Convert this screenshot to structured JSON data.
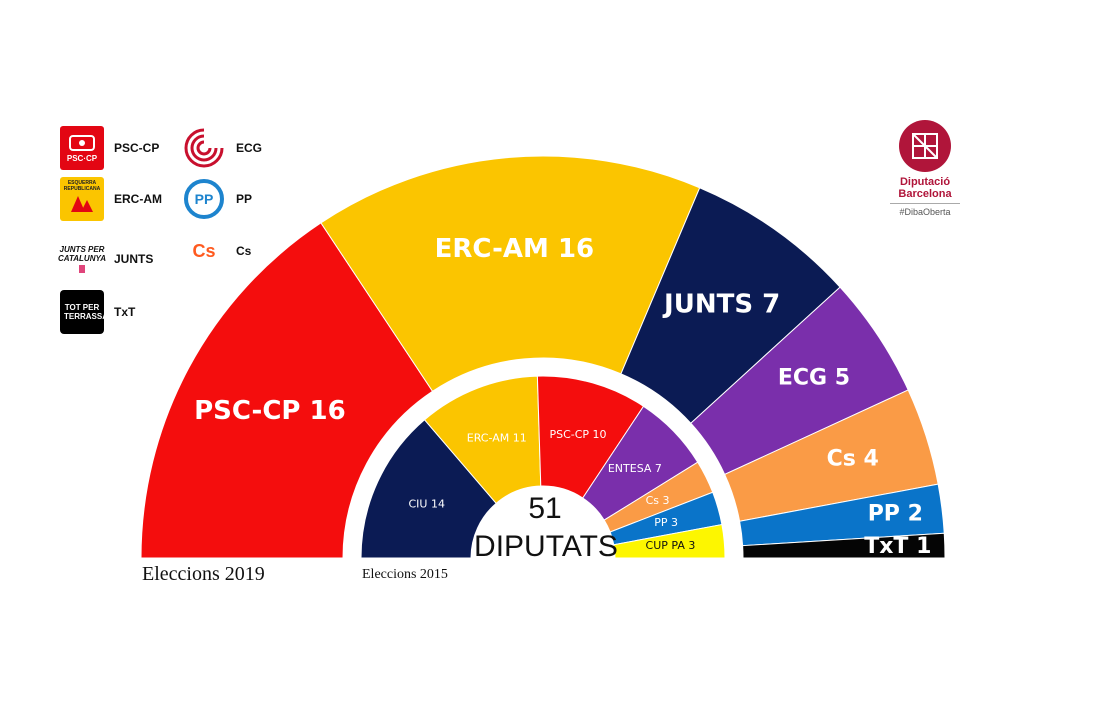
{
  "chart_data": [
    {
      "type": "pie",
      "subtype": "parliament-hemicycle",
      "caption": "Eleccions 2019",
      "series": [
        {
          "name": "PSC-CP",
          "label": "PSC-CP 16",
          "value": 16,
          "color": "#f40d0d"
        },
        {
          "name": "ERC-AM",
          "label": "ERC-AM 16",
          "value": 16,
          "color": "#fbc500"
        },
        {
          "name": "JUNTS",
          "label": "JUNTS 7",
          "value": 7,
          "color": "#0b1b54"
        },
        {
          "name": "ECG",
          "label": "ECG 5",
          "value": 5,
          "color": "#7a2fab"
        },
        {
          "name": "Cs",
          "label": "Cs 4",
          "value": 4,
          "color": "#fa9b46"
        },
        {
          "name": "PP",
          "label": "PP 2",
          "value": 2,
          "color": "#0a74c9"
        },
        {
          "name": "TxT",
          "label": "TxT 1",
          "value": 1,
          "color": "#050505"
        }
      ]
    },
    {
      "type": "pie",
      "subtype": "parliament-hemicycle",
      "caption": "Eleccions 2015",
      "series": [
        {
          "name": "CIU",
          "label": "CIU 14",
          "value": 14,
          "color": "#0b1b54"
        },
        {
          "name": "ERC-AM",
          "label": "ERC-AM 11",
          "value": 11,
          "color": "#fbc500"
        },
        {
          "name": "PSC-CP",
          "label": "PSC-CP 10",
          "value": 10,
          "color": "#f40d0d"
        },
        {
          "name": "ENTESA",
          "label": "ENTESA 7",
          "value": 7,
          "color": "#7a2fab"
        },
        {
          "name": "Cs",
          "label": "Cs 3",
          "value": 3,
          "color": "#fa9b46"
        },
        {
          "name": "PP",
          "label": "PP 3",
          "value": 3,
          "color": "#0a74c9"
        },
        {
          "name": "CUP PA",
          "label": "CUP PA 3",
          "value": 3,
          "color": "#fdf600"
        }
      ]
    }
  ],
  "center": {
    "number": "51",
    "text": "DIPUTATS"
  },
  "legend": [
    {
      "label": "PSC-CP",
      "logo_text": "PSC·CP",
      "icon": "psc-cp-logo-icon",
      "color": "#e30613"
    },
    {
      "label": "ECG",
      "icon": "ecg-logo-icon",
      "color": "#c8102e"
    },
    {
      "label": "ERC-AM",
      "logo_text": "ESQUERRA REPUBLICANA",
      "icon": "erc-am-logo-icon",
      "color": "#fbc500"
    },
    {
      "label": "PP",
      "logo_text": "PP",
      "icon": "pp-logo-icon",
      "color": "#1d84ce"
    },
    {
      "label": "JUNTS",
      "logo_text": "JUNTS PER CATALUNYA",
      "icon": "junts-logo-icon",
      "color": "#111111"
    },
    {
      "label": "Cs",
      "logo_text": "Cs",
      "icon": "cs-logo-icon",
      "color": "#ff5a1f"
    },
    {
      "label": "TxT",
      "logo_text": "TOT PER TERRASSA",
      "icon": "txt-logo-icon",
      "color": "#000000"
    }
  ],
  "brand": {
    "name_line1": "Diputació",
    "name_line2": "Barcelona",
    "hashtag": "#DibaOberta",
    "color": "#b0153a",
    "icon": "diputacio-barcelona-logo-icon"
  }
}
